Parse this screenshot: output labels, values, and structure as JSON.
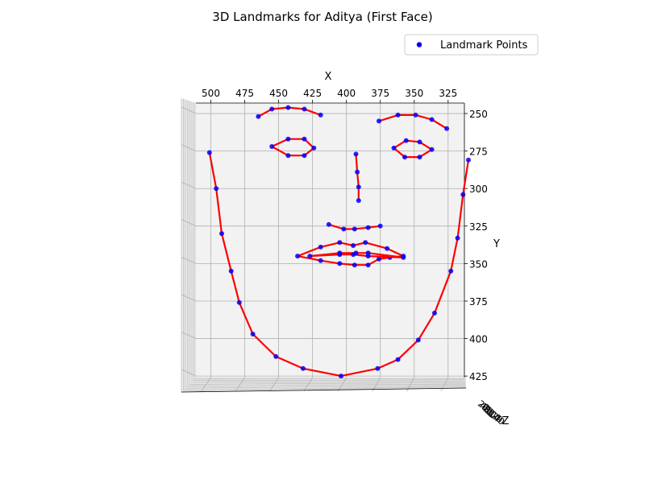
{
  "chart_data": {
    "type": "scatter",
    "title": "3D Landmarks for Aditya (First Face)",
    "xlabel": "X",
    "ylabel": "Y",
    "zlabel": "Z",
    "legend": {
      "label": "Landmark Points",
      "position": "top-right"
    },
    "x_ticks": [
      500,
      475,
      450,
      425,
      400,
      375,
      350,
      325
    ],
    "y_ticks": [
      250,
      275,
      300,
      325,
      350,
      375,
      400,
      425
    ],
    "z_ticks": [
      "20",
      "40",
      "60",
      "80",
      "100",
      "120",
      "140"
    ],
    "xlim": [
      511,
      313
    ],
    "ylim": [
      243,
      426
    ],
    "point_color": "#0000ff",
    "line_color": "#ff0000",
    "series": [
      {
        "part": "jaw",
        "closed": false,
        "points": [
          [
            501,
            276
          ],
          [
            496,
            300
          ],
          [
            492,
            330
          ],
          [
            485,
            355
          ],
          [
            479,
            376
          ],
          [
            469,
            397
          ],
          [
            452,
            412
          ],
          [
            432,
            420
          ],
          [
            404,
            425
          ],
          [
            377,
            420
          ],
          [
            362,
            414
          ],
          [
            347,
            401
          ],
          [
            335,
            383
          ],
          [
            323,
            355
          ],
          [
            318,
            333
          ],
          [
            314,
            304
          ],
          [
            310,
            281
          ]
        ]
      },
      {
        "part": "right-eyebrow",
        "closed": false,
        "points": [
          [
            465,
            252
          ],
          [
            455,
            247
          ],
          [
            443,
            246
          ],
          [
            431,
            247
          ],
          [
            419,
            251
          ]
        ]
      },
      {
        "part": "left-eyebrow",
        "closed": false,
        "points": [
          [
            376,
            255
          ],
          [
            362,
            251
          ],
          [
            349,
            251
          ],
          [
            337,
            254
          ],
          [
            326,
            260
          ]
        ]
      },
      {
        "part": "nose-bridge",
        "closed": false,
        "points": [
          [
            393,
            277
          ],
          [
            392,
            289
          ],
          [
            391,
            299
          ],
          [
            391,
            308
          ]
        ]
      },
      {
        "part": "nose-bottom",
        "closed": false,
        "points": [
          [
            413,
            324
          ],
          [
            402,
            327
          ],
          [
            394,
            327
          ],
          [
            384,
            326
          ],
          [
            375,
            325
          ]
        ]
      },
      {
        "part": "right-eye",
        "closed": true,
        "points": [
          [
            455,
            272
          ],
          [
            443,
            267
          ],
          [
            431,
            267
          ],
          [
            424,
            273
          ],
          [
            431,
            278
          ],
          [
            443,
            278
          ]
        ]
      },
      {
        "part": "left-eye",
        "closed": true,
        "points": [
          [
            365,
            273
          ],
          [
            356,
            268
          ],
          [
            346,
            269
          ],
          [
            337,
            274
          ],
          [
            346,
            279
          ],
          [
            357,
            279
          ]
        ]
      },
      {
        "part": "outer-lip",
        "closed": true,
        "points": [
          [
            436,
            345
          ],
          [
            419,
            339
          ],
          [
            405,
            336
          ],
          [
            395,
            338
          ],
          [
            386,
            336
          ],
          [
            370,
            340
          ],
          [
            358,
            345
          ],
          [
            368,
            346
          ],
          [
            376,
            347
          ],
          [
            384,
            351
          ],
          [
            394,
            351
          ],
          [
            405,
            350
          ],
          [
            419,
            348
          ]
        ]
      },
      {
        "part": "inner-lip",
        "closed": true,
        "points": [
          [
            427,
            345
          ],
          [
            405,
            343
          ],
          [
            393,
            343
          ],
          [
            384,
            343
          ],
          [
            358,
            346
          ],
          [
            384,
            345
          ],
          [
            395,
            344
          ],
          [
            405,
            344
          ]
        ]
      }
    ]
  }
}
